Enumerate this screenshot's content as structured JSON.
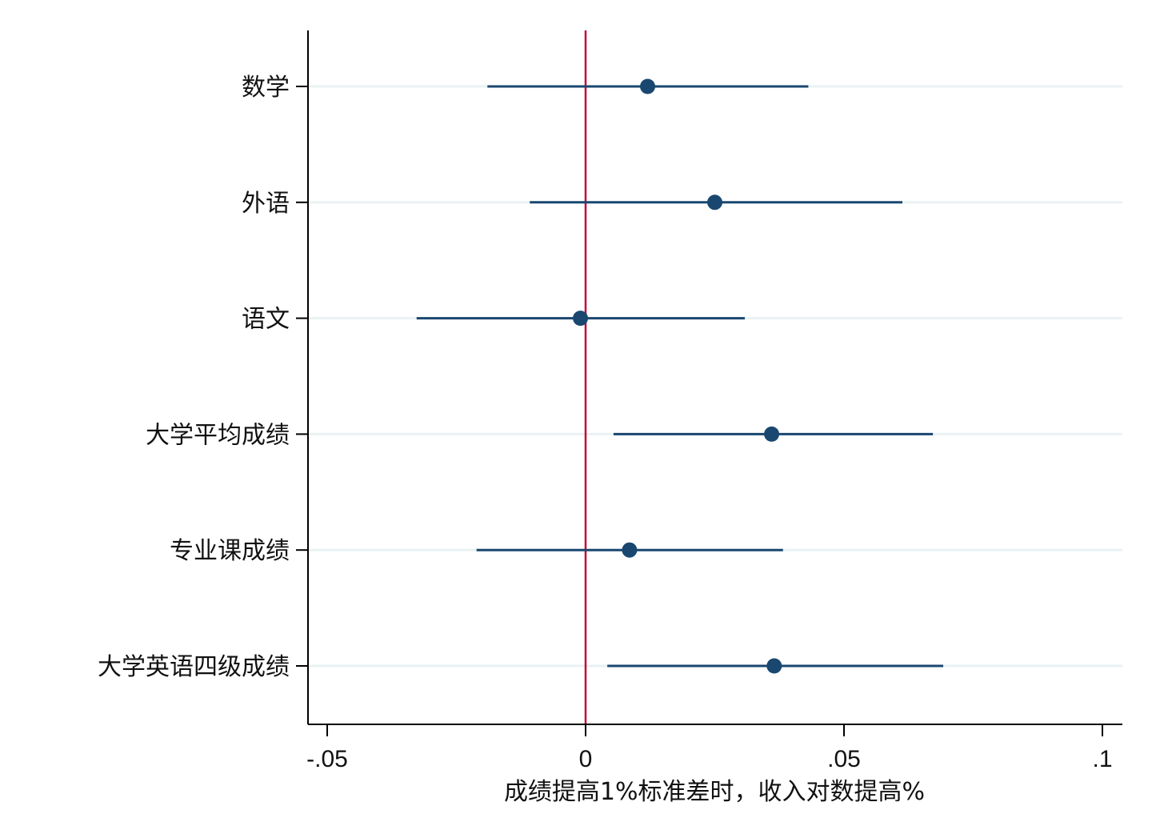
{
  "chart_data": {
    "type": "scatter",
    "subtype": "coefficient-plot",
    "orientation": "horizontal",
    "xlabel": "成绩提高1%标准差时，收入对数提高%",
    "ylabel": "",
    "xlim": [
      -0.054,
      0.104
    ],
    "xticks": [
      -0.05,
      0,
      0.05,
      0.1
    ],
    "xtick_labels": [
      "-.05",
      "0",
      ".05",
      ".1"
    ],
    "reference_line_x": 0,
    "grid": "horizontal gridlines at each category",
    "categories": [
      "数学",
      "外语",
      "语文",
      "大学平均成绩",
      "专业课成绩",
      "大学英语四级成绩"
    ],
    "series": [
      {
        "estimate": [
          0.012,
          0.025,
          -0.001,
          0.036,
          0.0085,
          0.0365
        ],
        "ci_low": [
          -0.019,
          -0.0108,
          -0.0327,
          0.0054,
          -0.0211,
          0.0042
        ],
        "ci_high": [
          0.0431,
          0.0613,
          0.0308,
          0.0672,
          0.0382,
          0.0692
        ]
      }
    ],
    "colors": {
      "marker": "#1a476f",
      "ci_line": "#1a476f",
      "reference_line": "#c10534",
      "gridline": "#eaf2f3",
      "axis": "#000000"
    }
  }
}
